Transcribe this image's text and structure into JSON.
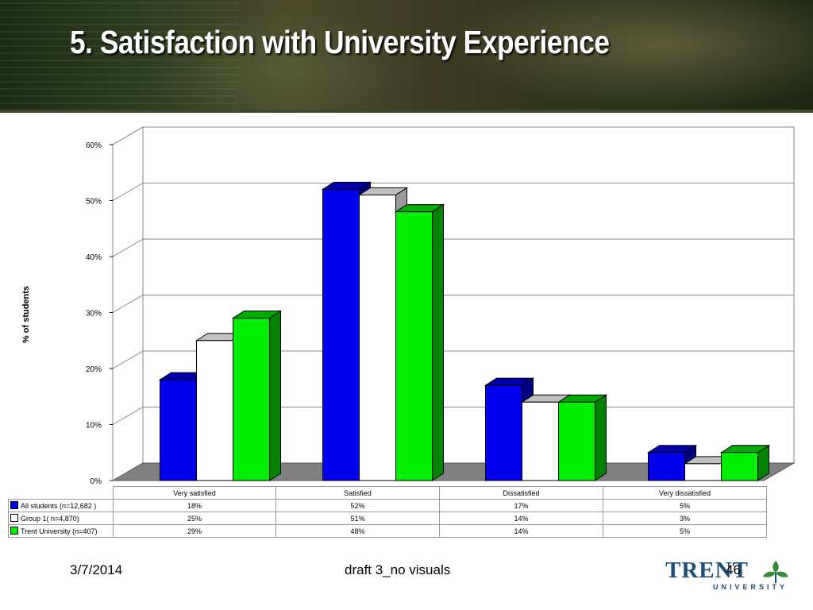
{
  "slide": {
    "title": "5. Satisfaction with University Experience",
    "footer_date": "3/7/2014",
    "footer_center": "draft 3_no visuals",
    "page_number": "46"
  },
  "logo": {
    "word": "TRENT",
    "sub": "UNIVERSITY"
  },
  "colors": {
    "all_students": "#0000ee",
    "group1": "#ffffff",
    "trent": "#00ee00",
    "floor": "#808080"
  },
  "chart_data": {
    "type": "bar",
    "ylabel": "% of students",
    "ylim": [
      0,
      60
    ],
    "yticks": [
      "0%",
      "10%",
      "20%",
      "30%",
      "40%",
      "50%",
      "60%"
    ],
    "grid": true,
    "legend": "table-below",
    "categories": [
      "Very satisfied",
      "Satisfied",
      "Dissatisfied",
      "Very dissatisfied"
    ],
    "series": [
      {
        "name": "All students (n=12,682 )",
        "values": [
          18,
          52,
          17,
          5
        ],
        "labels": [
          "18%",
          "52%",
          "17%",
          "5%"
        ]
      },
      {
        "name": "Group 1( n=4,870)",
        "values": [
          25,
          51,
          14,
          3
        ],
        "labels": [
          "25%",
          "51%",
          "14%",
          "3%"
        ]
      },
      {
        "name": "Trent University (n=407)",
        "values": [
          29,
          48,
          14,
          5
        ],
        "labels": [
          "29%",
          "48%",
          "14%",
          "5%"
        ]
      }
    ]
  }
}
